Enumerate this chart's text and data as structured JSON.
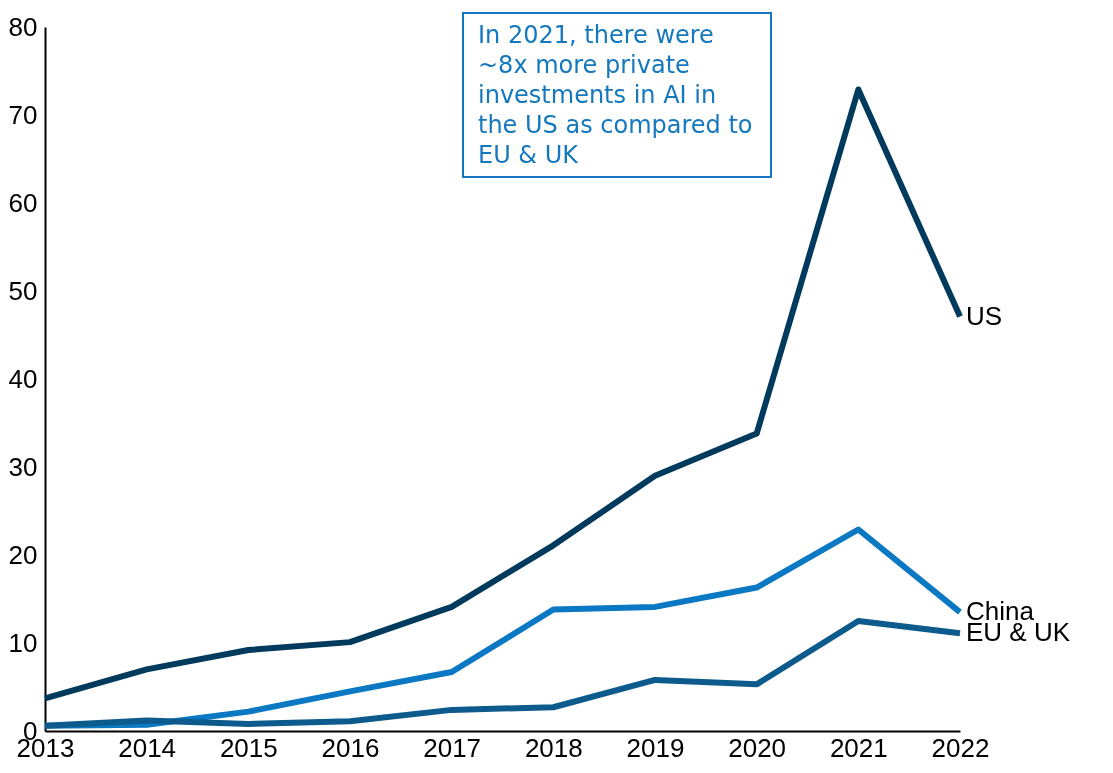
{
  "chart_data": {
    "type": "line",
    "categories": [
      "2013",
      "2014",
      "2015",
      "2016",
      "2017",
      "2018",
      "2019",
      "2020",
      "2021",
      "2022"
    ],
    "series": [
      {
        "name": "US",
        "color": "#003a5c",
        "values": [
          3.7,
          7.0,
          9.2,
          10.1,
          14.1,
          21.1,
          29.0,
          33.8,
          72.9,
          47.1
        ]
      },
      {
        "name": "China",
        "color": "#0a78c2",
        "values": [
          0.6,
          0.7,
          2.2,
          4.5,
          6.7,
          13.8,
          14.1,
          16.3,
          22.9,
          13.5
        ]
      },
      {
        "name": "EU & UK",
        "color": "#0d5a8c",
        "values": [
          0.6,
          1.2,
          0.8,
          1.1,
          2.4,
          2.7,
          5.8,
          5.3,
          12.5,
          11.1
        ]
      }
    ],
    "ylim": [
      0,
      80
    ],
    "yticks": [
      0,
      10,
      20,
      30,
      40,
      50,
      60,
      70,
      80
    ],
    "grid": false,
    "legend": false,
    "marker": "none",
    "line_style": "solid",
    "annotations": [
      "In 2021, there were ~8x more private investments in AI in the US as compared to EU & UK"
    ]
  }
}
